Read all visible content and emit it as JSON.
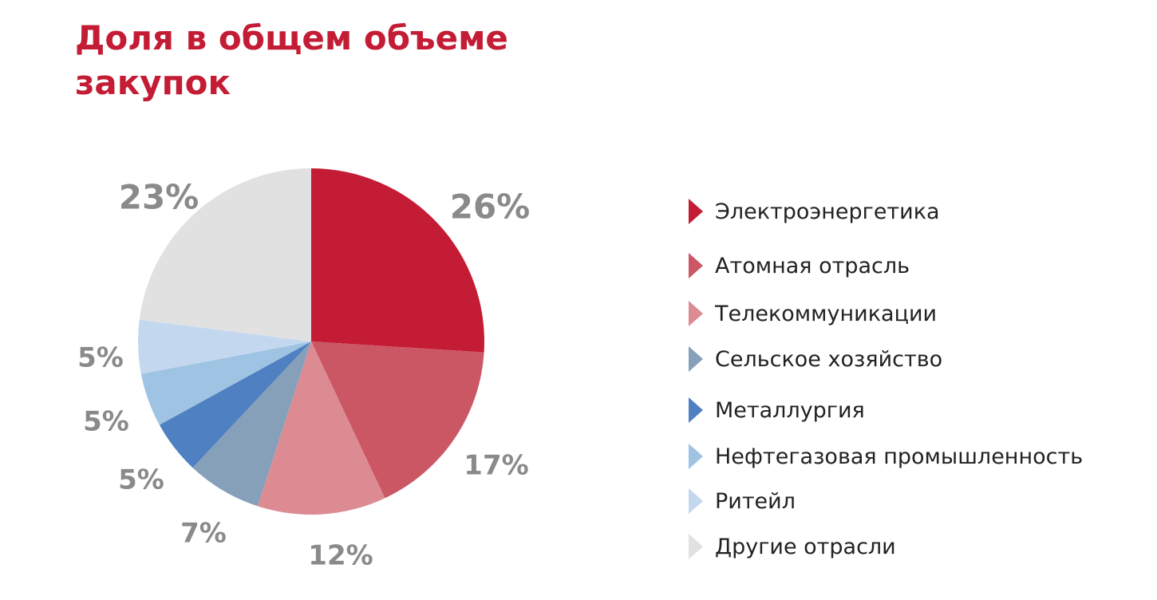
{
  "title": "Доля в общем объеме закупок",
  "chart_data": {
    "type": "pie",
    "title": "Доля в общем объеме закупок",
    "slices": [
      {
        "label": "Электроэнергетика",
        "value": 26,
        "display": "26%",
        "color": "#c41c35"
      },
      {
        "label": "Атомная отрасль",
        "value": 17,
        "display": "17%",
        "color": "#cb5764"
      },
      {
        "label": "Телекоммуникации",
        "value": 12,
        "display": "12%",
        "color": "#dc8b93"
      },
      {
        "label": "Сельское хозяйство",
        "value": 7,
        "display": "7%",
        "color": "#87a0ba"
      },
      {
        "label": "Металлургия",
        "value": 5,
        "display": "5%",
        "color": "#4f80c1"
      },
      {
        "label": "Нефтегазовая промышленность",
        "value": 5,
        "display": "5%",
        "color": "#9fc3e3"
      },
      {
        "label": "Ритейл",
        "value": 5,
        "display": "5%",
        "color": "#c3d8ee"
      },
      {
        "label": "Другие отрасли",
        "value": 23,
        "display": "23%",
        "color": "#e1e1e1"
      }
    ],
    "start": "12 o'clock",
    "direction": "clockwise",
    "legend_position": "right"
  }
}
